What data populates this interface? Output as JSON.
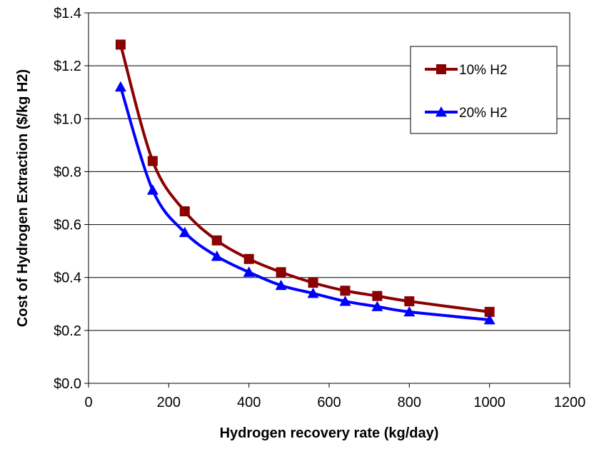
{
  "chart_data": {
    "type": "line",
    "title": "",
    "xlabel": "Hydrogen recovery rate (kg/day)",
    "ylabel": "Cost of Hydrogen Extraction ($/kg H2)",
    "xlim": [
      0,
      1200
    ],
    "ylim": [
      0,
      1.4
    ],
    "x_ticks": [
      0,
      200,
      400,
      600,
      800,
      1000,
      1200
    ],
    "x_tick_labels": [
      "0",
      "200",
      "400",
      "600",
      "800",
      "1000",
      "1200"
    ],
    "y_ticks": [
      0,
      0.2,
      0.4,
      0.6,
      0.8,
      1.0,
      1.2,
      1.4
    ],
    "y_tick_labels": [
      "$0.0",
      "$0.2",
      "$0.4",
      "$0.6",
      "$0.8",
      "$1.0",
      "$1.2",
      "$1.4"
    ],
    "grid": "horizontal",
    "legend_position": "top-right",
    "series": [
      {
        "name": "10% H2",
        "marker": "square",
        "color": "#8B0000",
        "x": [
          80,
          160,
          240,
          320,
          400,
          480,
          560,
          640,
          720,
          800,
          1000
        ],
        "y": [
          1.28,
          0.84,
          0.65,
          0.54,
          0.47,
          0.42,
          0.38,
          0.35,
          0.33,
          0.31,
          0.27
        ]
      },
      {
        "name": "20% H2",
        "marker": "triangle",
        "color": "#0000FF",
        "x": [
          80,
          160,
          240,
          320,
          400,
          480,
          560,
          640,
          720,
          800,
          1000
        ],
        "y": [
          1.12,
          0.73,
          0.57,
          0.48,
          0.42,
          0.37,
          0.34,
          0.31,
          0.29,
          0.27,
          0.24
        ]
      }
    ]
  }
}
